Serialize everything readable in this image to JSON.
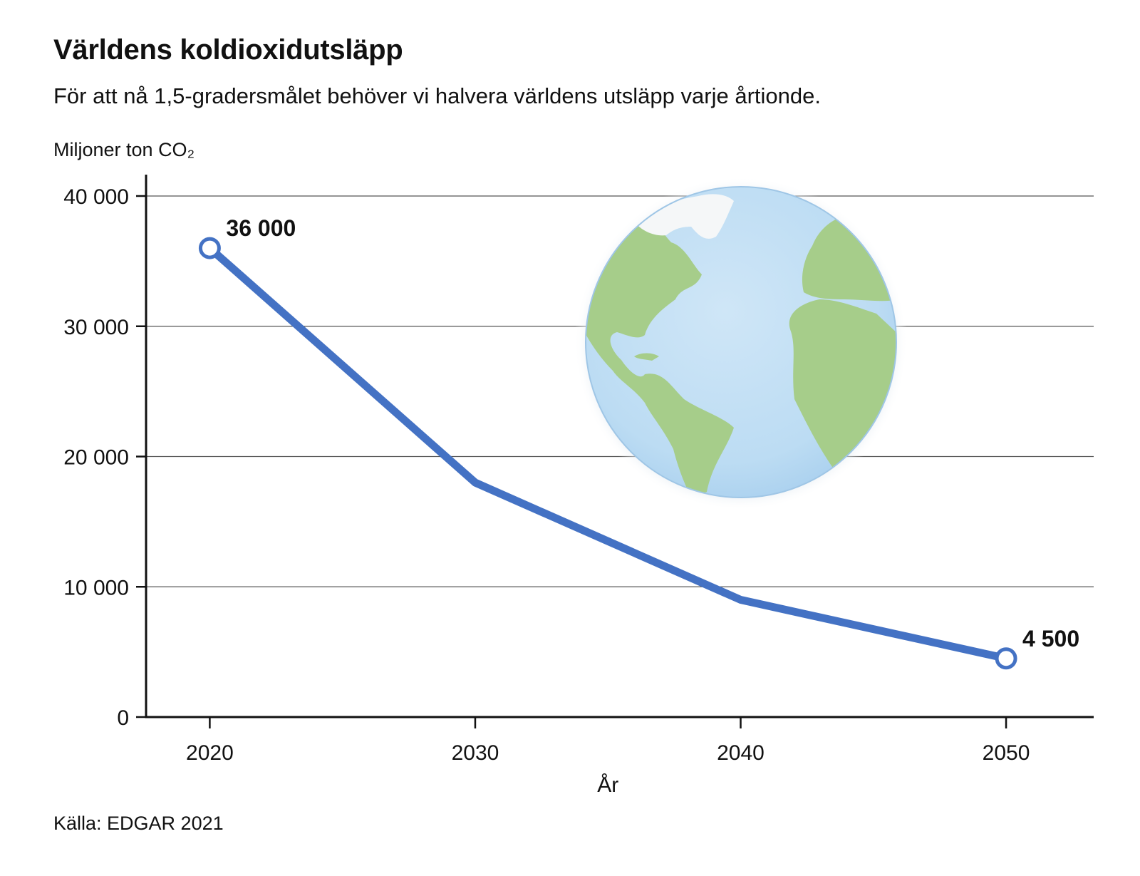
{
  "header": {
    "title": "Världens koldioxidutsläpp",
    "subtitle": "För att nå 1,5-gradersmålet behöver vi halvera världens utsläpp varje årtionde.",
    "y_unit": "Miljoner ton CO₂"
  },
  "footer": {
    "source": "Källa: EDGAR 2021"
  },
  "chart_data": {
    "type": "line",
    "ylabel": "Miljoner ton CO₂",
    "xlabel": "År",
    "x": [
      2020,
      2030,
      2040,
      2050
    ],
    "series": [
      {
        "values": [
          36000,
          18000,
          9000,
          4500
        ]
      }
    ],
    "data_labels": [
      {
        "x": 2020,
        "text": "36 000"
      },
      {
        "x": 2050,
        "text": "4 500"
      }
    ],
    "y_ticks": [
      0,
      10000,
      20000,
      30000,
      40000
    ],
    "y_tick_labels": [
      "0",
      "10 000",
      "20 000",
      "30 000",
      "40 000"
    ],
    "x_ticks": [
      2020,
      2030,
      2040,
      2050
    ],
    "x_tick_labels": [
      "2020",
      "2030",
      "2040",
      "2050"
    ],
    "ylim": [
      0,
      40000
    ],
    "xlim": [
      2017.6,
      2053.3
    ],
    "grid": true,
    "line_color": "#4472c4",
    "decoration": "globe-illustration"
  }
}
